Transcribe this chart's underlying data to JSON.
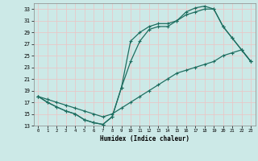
{
  "xlabel": "Humidex (Indice chaleur)",
  "xlim": [
    -0.5,
    23.5
  ],
  "ylim": [
    13,
    34
  ],
  "ytick_vals": [
    13,
    15,
    17,
    19,
    21,
    23,
    25,
    27,
    29,
    31,
    33
  ],
  "xtick_vals": [
    0,
    1,
    2,
    3,
    4,
    5,
    6,
    7,
    8,
    9,
    10,
    11,
    12,
    13,
    14,
    15,
    16,
    17,
    18,
    19,
    20,
    21,
    22,
    23
  ],
  "bg_color": "#cce9e7",
  "grid_color": "#e8c8c8",
  "line_color": "#1e6e60",
  "c1x": [
    0,
    1,
    2,
    3,
    4,
    5,
    6,
    7,
    8,
    9,
    10,
    11,
    12,
    13,
    14,
    15,
    16,
    17,
    18,
    19,
    20,
    21,
    22,
    23
  ],
  "c1y": [
    18.0,
    17.0,
    16.2,
    15.5,
    15.0,
    14.0,
    13.5,
    13.2,
    14.5,
    19.5,
    27.5,
    29.0,
    30.0,
    30.5,
    30.5,
    31.0,
    32.5,
    33.2,
    33.5,
    33.0,
    30.0,
    28.0,
    26.0,
    24.0
  ],
  "c2x": [
    0,
    1,
    2,
    3,
    4,
    5,
    6,
    7,
    8,
    9,
    10,
    11,
    12,
    13,
    14,
    15,
    16,
    17,
    18,
    19,
    20,
    21,
    22,
    23
  ],
  "c2y": [
    18.0,
    17.0,
    16.2,
    15.5,
    15.0,
    14.0,
    13.5,
    13.2,
    14.5,
    19.5,
    24.0,
    27.5,
    29.5,
    30.0,
    30.0,
    31.0,
    32.0,
    32.5,
    33.0,
    33.0,
    30.0,
    28.0,
    26.0,
    24.0
  ],
  "c3x": [
    0,
    1,
    2,
    3,
    4,
    5,
    6,
    7,
    8,
    9,
    10,
    11,
    12,
    13,
    14,
    15,
    16,
    17,
    18,
    19,
    20,
    21,
    22,
    23
  ],
  "c3y": [
    18.0,
    17.5,
    17.0,
    16.5,
    16.0,
    15.5,
    15.0,
    14.5,
    15.0,
    16.0,
    17.0,
    18.0,
    19.0,
    20.0,
    21.0,
    22.0,
    22.5,
    23.0,
    23.5,
    24.0,
    25.0,
    25.5,
    26.0,
    24.0
  ]
}
